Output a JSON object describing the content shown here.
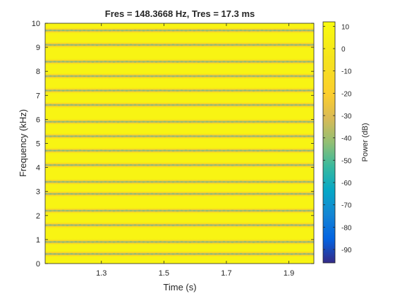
{
  "chart_data": {
    "type": "heatmap",
    "title": "Fres = 148.3668 Hz, Tres = 17.3 ms",
    "xlabel": "Time (s)",
    "ylabel": "Frequency (kHz)",
    "colorbar_label": "Power (dB)",
    "xlim": [
      1.12,
      1.98
    ],
    "ylim": [
      0,
      10
    ],
    "xticks": [
      1.3,
      1.5,
      1.7,
      1.9
    ],
    "yticks": [
      0,
      1,
      2,
      3,
      4,
      5,
      6,
      7,
      8,
      9,
      10
    ],
    "clim": [
      -96,
      12
    ],
    "cticks": [
      10,
      0,
      -10,
      -20,
      -30,
      -40,
      -50,
      -60,
      -70,
      -80,
      -90
    ],
    "colormap": "parula",
    "band_centers_khz": [
      0.4,
      0.9,
      1.6,
      2.2,
      2.9,
      3.4,
      4.1,
      4.7,
      5.3,
      5.9,
      6.6,
      7.2,
      7.8,
      8.4,
      9.1,
      9.7
    ],
    "band_min_db": -42,
    "background_db": 7,
    "grid": false
  }
}
